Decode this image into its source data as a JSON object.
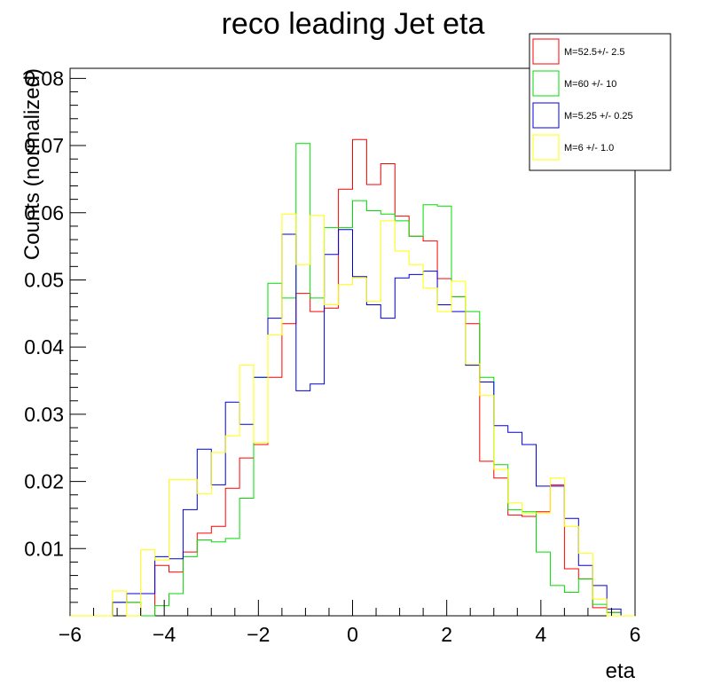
{
  "chart_data": {
    "type": "histogram",
    "title": "reco leading Jet eta",
    "xlabel": "eta",
    "ylabel": "Counts (normalized)",
    "xlim": [
      -6,
      6
    ],
    "ylim": [
      0,
      0.0815
    ],
    "x_ticks": [
      -6,
      -4,
      -2,
      0,
      2,
      4,
      6
    ],
    "x_tick_labels": [
      "−6",
      "−4",
      "−2",
      "0",
      "2",
      "4",
      "6"
    ],
    "y_ticks": [
      0.01,
      0.02,
      0.03,
      0.04,
      0.05,
      0.06,
      0.07,
      0.08
    ],
    "y_tick_labels": [
      "0.01",
      "0.02",
      "0.03",
      "0.04",
      "0.05",
      "0.06",
      "0.07",
      "0.08"
    ],
    "bin_edges_start": -6,
    "bin_width": 0.3,
    "grid": false,
    "legend_position": "top-right",
    "series": [
      {
        "name": "M=52.5+/- 2.5",
        "color": "#ff0000",
        "values": [
          0,
          0,
          0,
          0.002,
          0.002,
          0,
          0.0075,
          0.0065,
          0.0095,
          0.0123,
          0.0133,
          0.019,
          0.0235,
          0.0255,
          0.0355,
          0.0435,
          0.048,
          0.0453,
          0.0458,
          0.0635,
          0.0709,
          0.0642,
          0.0673,
          0.0595,
          0.0565,
          0.0558,
          0.0502,
          0.0475,
          0.0435,
          0.023,
          0.0205,
          0.015,
          0.0148,
          0.0155,
          0.0195,
          0.007,
          0.0055,
          0.0012,
          0.0005,
          0,
          0
        ]
      },
      {
        "name": "M=60 +/- 10",
        "color": "#00dd00",
        "values": [
          0,
          0,
          0,
          0.002,
          0.002,
          0,
          0.0015,
          0.0033,
          0.0088,
          0.0113,
          0.011,
          0.0115,
          0.0175,
          0.0355,
          0.0495,
          0.0473,
          0.0703,
          0.0473,
          0.0578,
          0.0578,
          0.0618,
          0.0603,
          0.0598,
          0.0588,
          0.0565,
          0.0612,
          0.061,
          0.0475,
          0.0453,
          0.0355,
          0.0225,
          0.0158,
          0.0155,
          0.0095,
          0.0045,
          0.0035,
          0.0055,
          0.0017,
          0.0005,
          0,
          0
        ]
      },
      {
        "name": "M=5.25 +/- 0.25",
        "color": "#0000dd",
        "values": [
          0,
          0,
          0,
          0.002,
          0.0033,
          0.0033,
          0.0088,
          0.0085,
          0.0158,
          0.0248,
          0.0195,
          0.0318,
          0.0285,
          0.0355,
          0.0443,
          0.0568,
          0.0335,
          0.0345,
          0.0538,
          0.0575,
          0.0505,
          0.0463,
          0.0443,
          0.0503,
          0.0508,
          0.0513,
          0.0463,
          0.0453,
          0.0373,
          0.0348,
          0.0283,
          0.0273,
          0.0255,
          0.0193,
          0.0193,
          0.0145,
          0.0075,
          0.0045,
          0.001,
          0,
          0
        ]
      },
      {
        "name": "M=6 +/- 1.0",
        "color": "#ffff00",
        "values": [
          0,
          0,
          0,
          0.0037,
          0,
          0.0098,
          0.0083,
          0.0203,
          0.0203,
          0.0182,
          0.0243,
          0.0268,
          0.0373,
          0.0258,
          0.0418,
          0.0598,
          0.0523,
          0.0596,
          0.0463,
          0.0493,
          0.0503,
          0.0468,
          0.0588,
          0.0543,
          0.0523,
          0.0488,
          0.0453,
          0.0498,
          0.0375,
          0.0328,
          0.0218,
          0.0168,
          0.0153,
          0.0153,
          0.0205,
          0.0133,
          0.0093,
          0.0025,
          0,
          0,
          0
        ]
      }
    ]
  }
}
